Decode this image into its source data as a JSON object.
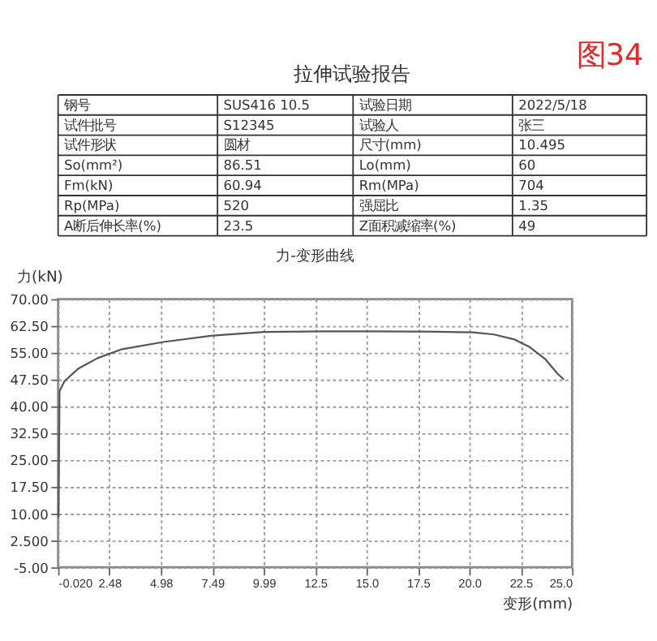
{
  "chart_data": [
    {
      "type": "other",
      "title": "拉伸试验报告",
      "annotations": [
        "图34",
        "钢号",
        "SUS416 10.5",
        "试验日期",
        "2022/5/18",
        "试件批号",
        "S12345",
        "试验人",
        "张三",
        "试件形状",
        "圆材",
        "尺寸(mm)",
        "10.495",
        "So(mm²)",
        "86.51",
        "Lo(mm)",
        "60",
        "Fm(kN)",
        "60.94",
        "Rm(MPa)",
        "704",
        "Rp(MPa)",
        "520",
        "强屈比",
        "1.35",
        "A断后伸长率(%)",
        "23.5",
        "Z面积减缩率(%)",
        "49"
      ]
    },
    {
      "type": "line",
      "title": "力-变形曲线",
      "xlabel": "变形(mm)",
      "ylabel": "力(kN)",
      "x": [
        0.0,
        0.03,
        0.05,
        0.3,
        0.95,
        1.9,
        3.1,
        5.1,
        7.5,
        10.0,
        12.9,
        15.4,
        17.8,
        20.2,
        21.2,
        22.2,
        22.9,
        23.7,
        24.3,
        24.6
      ],
      "series": [
        {
          "color": "#555555",
          "values": [
            9,
            30,
            44.3,
            47.1,
            50.5,
            53.5,
            56.0,
            58.0,
            59.8,
            60.8,
            61.0,
            61.0,
            60.9,
            60.7,
            60.1,
            58.7,
            56.7,
            53.2,
            49.1,
            47.5
          ]
        }
      ],
      "xlim": [
        -0.02,
        25.0
      ],
      "xticks": [
        {
          "value": -0.02,
          "label": "-0.020"
        },
        2.48,
        4.98,
        7.49,
        9.99,
        12.5,
        {
          "value": 15.0,
          "label": "15.0"
        },
        17.5,
        {
          "value": 20.0,
          "label": "20.0"
        },
        22.5,
        {
          "value": 25.0,
          "label": "25.0"
        }
      ],
      "ylim": [
        -5,
        70
      ],
      "yticks": [
        {
          "value": 70,
          "label": "70.00"
        },
        {
          "value": 62.5,
          "label": "62.50"
        },
        {
          "value": 55,
          "label": "55.00"
        },
        {
          "value": 47.5,
          "label": "47.50"
        },
        {
          "value": 40,
          "label": "40.00"
        },
        {
          "value": 32.5,
          "label": "32.50"
        },
        {
          "value": 25,
          "label": "25.00"
        },
        {
          "value": 17.5,
          "label": "17.50"
        },
        {
          "value": 10,
          "label": "10.00"
        },
        {
          "value": 2.5,
          "label": "2.500"
        },
        {
          "value": -5,
          "label": "-5.00"
        }
      ],
      "grid": true
    }
  ]
}
